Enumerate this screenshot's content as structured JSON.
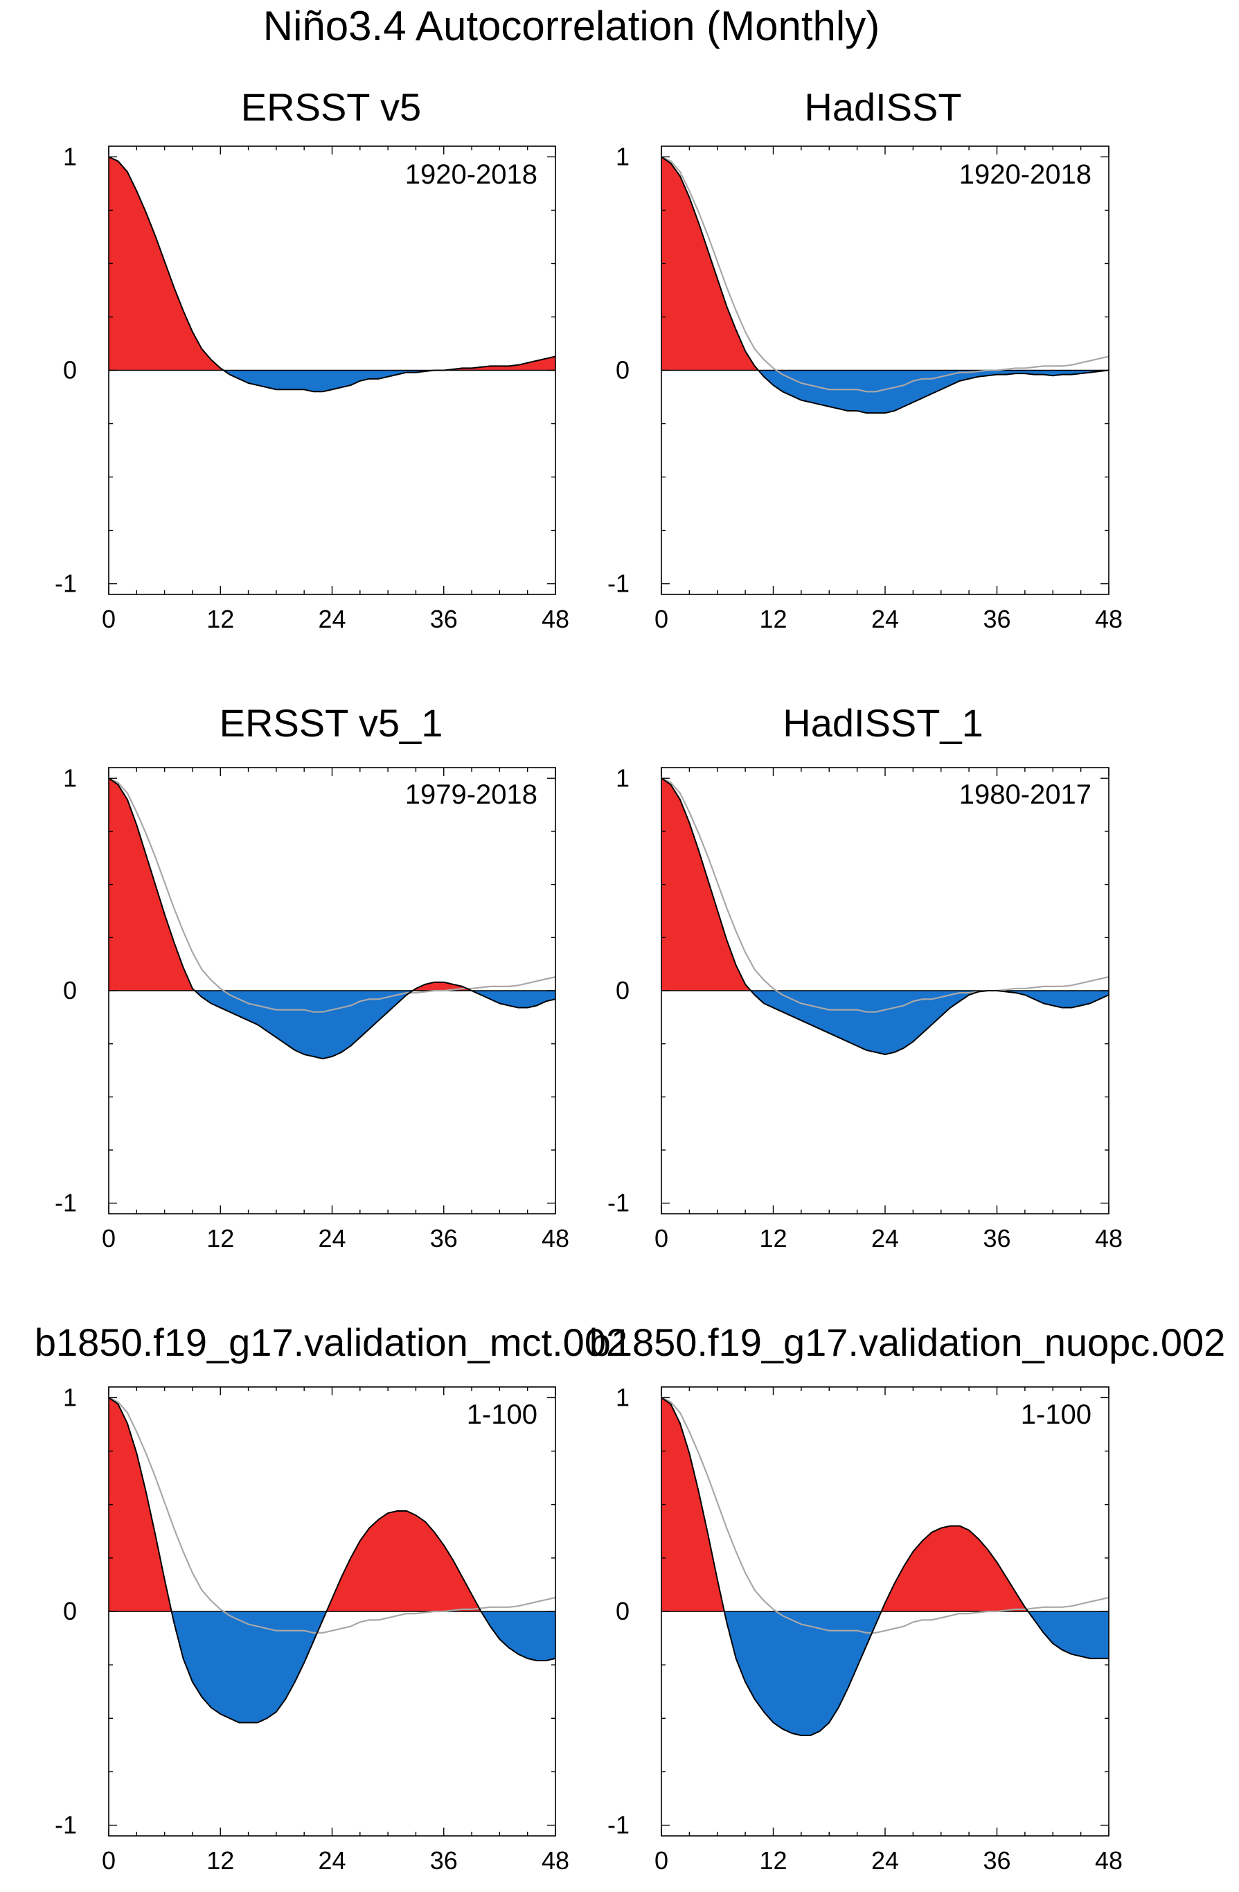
{
  "figure": {
    "title": "Niño3.4 Autocorrelation (Monthly)"
  },
  "colors": {
    "positive_fill": "#ee2c2c",
    "negative_fill": "#1874cd",
    "line": "#000000",
    "reference_line": "#a8a8a8",
    "axis": "#000000"
  },
  "chart_data": [
    {
      "type": "area",
      "title": "ERSST v5",
      "period": "1920-2018",
      "xlabel": "",
      "ylabel": "",
      "xlim": [
        0,
        48
      ],
      "ylim": [
        -1.05,
        1.05
      ],
      "xticks": [
        0,
        12,
        24,
        36,
        48
      ],
      "xtick_labels": [
        "0",
        "12",
        "24",
        "36",
        "48"
      ],
      "yticks": [
        -1,
        0,
        1
      ],
      "ytick_labels": [
        "-1",
        "0",
        "1"
      ],
      "show_reference": false,
      "lag": [
        0,
        1,
        2,
        3,
        4,
        5,
        6,
        7,
        8,
        9,
        10,
        11,
        12,
        13,
        14,
        15,
        16,
        17,
        18,
        19,
        20,
        21,
        22,
        23,
        24,
        25,
        26,
        27,
        28,
        29,
        30,
        31,
        32,
        33,
        34,
        35,
        36,
        37,
        38,
        39,
        40,
        41,
        42,
        43,
        44,
        45,
        46,
        47,
        48
      ],
      "acf": [
        1.0,
        0.98,
        0.93,
        0.84,
        0.74,
        0.63,
        0.51,
        0.39,
        0.28,
        0.18,
        0.1,
        0.05,
        0.01,
        -0.02,
        -0.04,
        -0.06,
        -0.07,
        -0.08,
        -0.09,
        -0.09,
        -0.09,
        -0.09,
        -0.1,
        -0.1,
        -0.09,
        -0.08,
        -0.07,
        -0.05,
        -0.04,
        -0.04,
        -0.03,
        -0.02,
        -0.01,
        -0.01,
        -0.005,
        0.0,
        0.0,
        0.005,
        0.01,
        0.01,
        0.015,
        0.02,
        0.02,
        0.02,
        0.025,
        0.035,
        0.045,
        0.055,
        0.065
      ],
      "reference_acf": []
    },
    {
      "type": "area",
      "title": "HadISST",
      "period": "1920-2018",
      "xlabel": "",
      "ylabel": "",
      "xlim": [
        0,
        48
      ],
      "ylim": [
        -1.05,
        1.05
      ],
      "xticks": [
        0,
        12,
        24,
        36,
        48
      ],
      "xtick_labels": [
        "0",
        "12",
        "24",
        "36",
        "48"
      ],
      "yticks": [
        -1,
        0,
        1
      ],
      "ytick_labels": [
        "-1",
        "0",
        "1"
      ],
      "show_reference": true,
      "lag": [
        0,
        1,
        2,
        3,
        4,
        5,
        6,
        7,
        8,
        9,
        10,
        11,
        12,
        13,
        14,
        15,
        16,
        17,
        18,
        19,
        20,
        21,
        22,
        23,
        24,
        25,
        26,
        27,
        28,
        29,
        30,
        31,
        32,
        33,
        34,
        35,
        36,
        37,
        38,
        39,
        40,
        41,
        42,
        43,
        44,
        45,
        46,
        47,
        48
      ],
      "acf": [
        1.0,
        0.97,
        0.91,
        0.81,
        0.69,
        0.56,
        0.43,
        0.3,
        0.19,
        0.09,
        0.02,
        -0.03,
        -0.07,
        -0.1,
        -0.12,
        -0.14,
        -0.15,
        -0.16,
        -0.17,
        -0.18,
        -0.19,
        -0.19,
        -0.2,
        -0.2,
        -0.2,
        -0.19,
        -0.17,
        -0.15,
        -0.13,
        -0.11,
        -0.09,
        -0.07,
        -0.05,
        -0.04,
        -0.03,
        -0.025,
        -0.02,
        -0.02,
        -0.015,
        -0.015,
        -0.02,
        -0.02,
        -0.025,
        -0.02,
        -0.02,
        -0.015,
        -0.01,
        -0.005,
        0.0
      ],
      "reference_acf": [
        1.0,
        0.98,
        0.93,
        0.84,
        0.74,
        0.63,
        0.51,
        0.39,
        0.28,
        0.18,
        0.1,
        0.05,
        0.01,
        -0.02,
        -0.04,
        -0.06,
        -0.07,
        -0.08,
        -0.09,
        -0.09,
        -0.09,
        -0.09,
        -0.1,
        -0.1,
        -0.09,
        -0.08,
        -0.07,
        -0.05,
        -0.04,
        -0.04,
        -0.03,
        -0.02,
        -0.01,
        -0.01,
        -0.005,
        0.0,
        0.0,
        0.005,
        0.01,
        0.01,
        0.015,
        0.02,
        0.02,
        0.02,
        0.025,
        0.035,
        0.045,
        0.055,
        0.065
      ]
    },
    {
      "type": "area",
      "title": "ERSST v5_1",
      "period": "1979-2018",
      "xlabel": "",
      "ylabel": "",
      "xlim": [
        0,
        48
      ],
      "ylim": [
        -1.05,
        1.05
      ],
      "xticks": [
        0,
        12,
        24,
        36,
        48
      ],
      "xtick_labels": [
        "0",
        "12",
        "24",
        "36",
        "48"
      ],
      "yticks": [
        -1,
        0,
        1
      ],
      "ytick_labels": [
        "-1",
        "0",
        "1"
      ],
      "show_reference": true,
      "lag": [
        0,
        1,
        2,
        3,
        4,
        5,
        6,
        7,
        8,
        9,
        10,
        11,
        12,
        13,
        14,
        15,
        16,
        17,
        18,
        19,
        20,
        21,
        22,
        23,
        24,
        25,
        26,
        27,
        28,
        29,
        30,
        31,
        32,
        33,
        34,
        35,
        36,
        37,
        38,
        39,
        40,
        41,
        42,
        43,
        44,
        45,
        46,
        47,
        48
      ],
      "acf": [
        1.0,
        0.97,
        0.9,
        0.78,
        0.64,
        0.5,
        0.36,
        0.23,
        0.11,
        0.01,
        -0.03,
        -0.06,
        -0.08,
        -0.1,
        -0.12,
        -0.14,
        -0.16,
        -0.19,
        -0.22,
        -0.25,
        -0.28,
        -0.3,
        -0.31,
        -0.32,
        -0.31,
        -0.29,
        -0.26,
        -0.22,
        -0.18,
        -0.14,
        -0.1,
        -0.06,
        -0.02,
        0.01,
        0.03,
        0.04,
        0.04,
        0.03,
        0.02,
        0.0,
        -0.02,
        -0.04,
        -0.06,
        -0.07,
        -0.08,
        -0.08,
        -0.07,
        -0.05,
        -0.04
      ],
      "reference_acf": [
        1.0,
        0.98,
        0.93,
        0.84,
        0.74,
        0.63,
        0.51,
        0.39,
        0.28,
        0.18,
        0.1,
        0.05,
        0.01,
        -0.02,
        -0.04,
        -0.06,
        -0.07,
        -0.08,
        -0.09,
        -0.09,
        -0.09,
        -0.09,
        -0.1,
        -0.1,
        -0.09,
        -0.08,
        -0.07,
        -0.05,
        -0.04,
        -0.04,
        -0.03,
        -0.02,
        -0.01,
        -0.01,
        -0.005,
        0.0,
        0.0,
        0.005,
        0.01,
        0.01,
        0.015,
        0.02,
        0.02,
        0.02,
        0.025,
        0.035,
        0.045,
        0.055,
        0.065
      ]
    },
    {
      "type": "area",
      "title": "HadISST_1",
      "period": "1980-2017",
      "xlabel": "",
      "ylabel": "",
      "xlim": [
        0,
        48
      ],
      "ylim": [
        -1.05,
        1.05
      ],
      "xticks": [
        0,
        12,
        24,
        36,
        48
      ],
      "xtick_labels": [
        "0",
        "12",
        "24",
        "36",
        "48"
      ],
      "yticks": [
        -1,
        0,
        1
      ],
      "ytick_labels": [
        "-1",
        "0",
        "1"
      ],
      "show_reference": true,
      "lag": [
        0,
        1,
        2,
        3,
        4,
        5,
        6,
        7,
        8,
        9,
        10,
        11,
        12,
        13,
        14,
        15,
        16,
        17,
        18,
        19,
        20,
        21,
        22,
        23,
        24,
        25,
        26,
        27,
        28,
        29,
        30,
        31,
        32,
        33,
        34,
        35,
        36,
        37,
        38,
        39,
        40,
        41,
        42,
        43,
        44,
        45,
        46,
        47,
        48
      ],
      "acf": [
        1.0,
        0.97,
        0.9,
        0.79,
        0.66,
        0.52,
        0.38,
        0.24,
        0.12,
        0.03,
        -0.02,
        -0.06,
        -0.08,
        -0.1,
        -0.12,
        -0.14,
        -0.16,
        -0.18,
        -0.2,
        -0.22,
        -0.24,
        -0.26,
        -0.28,
        -0.29,
        -0.3,
        -0.29,
        -0.27,
        -0.24,
        -0.2,
        -0.16,
        -0.12,
        -0.08,
        -0.05,
        -0.02,
        -0.005,
        0.0,
        0.0,
        -0.005,
        -0.01,
        -0.02,
        -0.04,
        -0.06,
        -0.07,
        -0.08,
        -0.08,
        -0.07,
        -0.06,
        -0.04,
        -0.02
      ],
      "reference_acf": [
        1.0,
        0.98,
        0.93,
        0.84,
        0.74,
        0.63,
        0.51,
        0.39,
        0.28,
        0.18,
        0.1,
        0.05,
        0.01,
        -0.02,
        -0.04,
        -0.06,
        -0.07,
        -0.08,
        -0.09,
        -0.09,
        -0.09,
        -0.09,
        -0.1,
        -0.1,
        -0.09,
        -0.08,
        -0.07,
        -0.05,
        -0.04,
        -0.04,
        -0.03,
        -0.02,
        -0.01,
        -0.01,
        -0.005,
        0.0,
        0.0,
        0.005,
        0.01,
        0.01,
        0.015,
        0.02,
        0.02,
        0.02,
        0.025,
        0.035,
        0.045,
        0.055,
        0.065
      ]
    },
    {
      "type": "area",
      "title": "b1850.f19_g17.validation_mct.002",
      "period": "1-100",
      "xlabel": "",
      "ylabel": "",
      "xlim": [
        0,
        48
      ],
      "ylim": [
        -1.05,
        1.05
      ],
      "xticks": [
        0,
        12,
        24,
        36,
        48
      ],
      "xtick_labels": [
        "0",
        "12",
        "24",
        "36",
        "48"
      ],
      "yticks": [
        -1,
        0,
        1
      ],
      "ytick_labels": [
        "-1",
        "0",
        "1"
      ],
      "show_reference": true,
      "lag": [
        0,
        1,
        2,
        3,
        4,
        5,
        6,
        7,
        8,
        9,
        10,
        11,
        12,
        13,
        14,
        15,
        16,
        17,
        18,
        19,
        20,
        21,
        22,
        23,
        24,
        25,
        26,
        27,
        28,
        29,
        30,
        31,
        32,
        33,
        34,
        35,
        36,
        37,
        38,
        39,
        40,
        41,
        42,
        43,
        44,
        45,
        46,
        47,
        48
      ],
      "acf": [
        1.0,
        0.97,
        0.88,
        0.74,
        0.56,
        0.36,
        0.15,
        -0.05,
        -0.22,
        -0.33,
        -0.4,
        -0.45,
        -0.48,
        -0.5,
        -0.52,
        -0.52,
        -0.52,
        -0.5,
        -0.47,
        -0.41,
        -0.33,
        -0.24,
        -0.14,
        -0.04,
        0.06,
        0.16,
        0.25,
        0.33,
        0.39,
        0.43,
        0.46,
        0.47,
        0.47,
        0.45,
        0.42,
        0.37,
        0.31,
        0.24,
        0.16,
        0.08,
        0.0,
        -0.07,
        -0.13,
        -0.17,
        -0.2,
        -0.22,
        -0.23,
        -0.23,
        -0.22
      ],
      "reference_acf": [
        1.0,
        0.98,
        0.93,
        0.84,
        0.74,
        0.63,
        0.51,
        0.39,
        0.28,
        0.18,
        0.1,
        0.05,
        0.01,
        -0.02,
        -0.04,
        -0.06,
        -0.07,
        -0.08,
        -0.09,
        -0.09,
        -0.09,
        -0.09,
        -0.1,
        -0.1,
        -0.09,
        -0.08,
        -0.07,
        -0.05,
        -0.04,
        -0.04,
        -0.03,
        -0.02,
        -0.01,
        -0.01,
        -0.005,
        0.0,
        0.0,
        0.005,
        0.01,
        0.01,
        0.015,
        0.02,
        0.02,
        0.02,
        0.025,
        0.035,
        0.045,
        0.055,
        0.065
      ]
    },
    {
      "type": "area",
      "title": "b1850.f19_g17.validation_nuopc.002",
      "period": "1-100",
      "xlabel": "",
      "ylabel": "",
      "xlim": [
        0,
        48
      ],
      "ylim": [
        -1.05,
        1.05
      ],
      "xticks": [
        0,
        12,
        24,
        36,
        48
      ],
      "xtick_labels": [
        "0",
        "12",
        "24",
        "36",
        "48"
      ],
      "yticks": [
        -1,
        0,
        1
      ],
      "ytick_labels": [
        "-1",
        "0",
        "1"
      ],
      "show_reference": true,
      "lag": [
        0,
        1,
        2,
        3,
        4,
        5,
        6,
        7,
        8,
        9,
        10,
        11,
        12,
        13,
        14,
        15,
        16,
        17,
        18,
        19,
        20,
        21,
        22,
        23,
        24,
        25,
        26,
        27,
        28,
        29,
        30,
        31,
        32,
        33,
        34,
        35,
        36,
        37,
        38,
        39,
        40,
        41,
        42,
        43,
        44,
        45,
        46,
        47,
        48
      ],
      "acf": [
        1.0,
        0.97,
        0.88,
        0.74,
        0.56,
        0.36,
        0.15,
        -0.05,
        -0.22,
        -0.33,
        -0.41,
        -0.47,
        -0.52,
        -0.55,
        -0.57,
        -0.58,
        -0.58,
        -0.56,
        -0.52,
        -0.45,
        -0.36,
        -0.26,
        -0.16,
        -0.06,
        0.04,
        0.13,
        0.21,
        0.28,
        0.33,
        0.37,
        0.39,
        0.4,
        0.4,
        0.38,
        0.34,
        0.29,
        0.23,
        0.16,
        0.09,
        0.02,
        -0.04,
        -0.1,
        -0.15,
        -0.18,
        -0.2,
        -0.21,
        -0.22,
        -0.22,
        -0.22
      ],
      "reference_acf": [
        1.0,
        0.98,
        0.93,
        0.84,
        0.74,
        0.63,
        0.51,
        0.39,
        0.28,
        0.18,
        0.1,
        0.05,
        0.01,
        -0.02,
        -0.04,
        -0.06,
        -0.07,
        -0.08,
        -0.09,
        -0.09,
        -0.09,
        -0.09,
        -0.1,
        -0.1,
        -0.09,
        -0.08,
        -0.07,
        -0.05,
        -0.04,
        -0.04,
        -0.03,
        -0.02,
        -0.01,
        -0.01,
        -0.005,
        0.0,
        0.0,
        0.005,
        0.01,
        0.01,
        0.015,
        0.02,
        0.02,
        0.02,
        0.025,
        0.035,
        0.045,
        0.055,
        0.065
      ]
    }
  ]
}
